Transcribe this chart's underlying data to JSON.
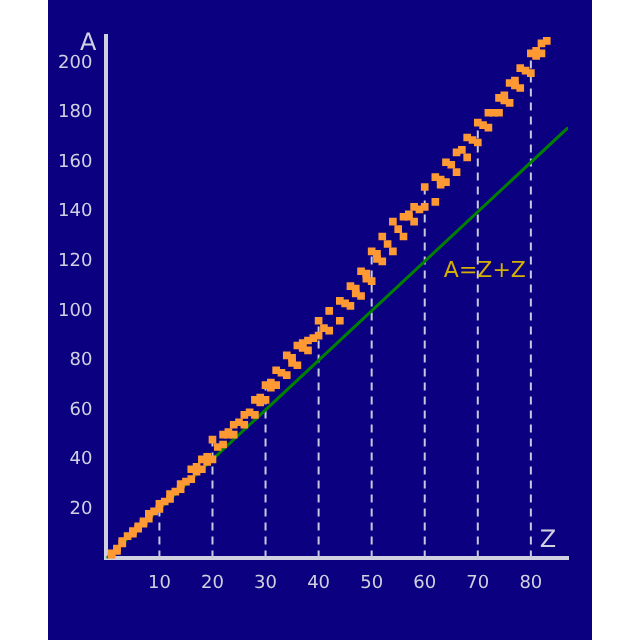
{
  "chart_data": {
    "type": "scatter",
    "xlabel": "Z",
    "ylabel": "A",
    "xlim": [
      0,
      87
    ],
    "ylim": [
      0,
      211
    ],
    "xticks": [
      10,
      20,
      30,
      40,
      50,
      60,
      70,
      80
    ],
    "yticks": [
      20,
      40,
      60,
      80,
      100,
      120,
      140,
      160,
      180,
      200
    ],
    "grid": false,
    "legend": false,
    "marker": "square",
    "series": [
      {
        "color": "#ff9933",
        "x": [
          1,
          1,
          2,
          2,
          3,
          3,
          4,
          5,
          5,
          6,
          6,
          7,
          7,
          8,
          8,
          9,
          10,
          10,
          11,
          12,
          12,
          13,
          14,
          14,
          15,
          16,
          16,
          17,
          17,
          18,
          18,
          19,
          19,
          20,
          20,
          21,
          22,
          22,
          23,
          23,
          24,
          24,
          25,
          26,
          26,
          27,
          28,
          28,
          29,
          29,
          30,
          30,
          31,
          31,
          32,
          32,
          33,
          34,
          34,
          35,
          35,
          36,
          36,
          37,
          37,
          38,
          38,
          39,
          40,
          40,
          41,
          42,
          42,
          44,
          44,
          45,
          46,
          46,
          47,
          47,
          48,
          48,
          49,
          49,
          50,
          50,
          51,
          51,
          52,
          52,
          53,
          54,
          54,
          55,
          56,
          56,
          57,
          57,
          58,
          58,
          59,
          60,
          60,
          62,
          62,
          63,
          63,
          64,
          64,
          65,
          66,
          66,
          67,
          68,
          68,
          69,
          70,
          70,
          71,
          72,
          72,
          73,
          74,
          74,
          75,
          75,
          76,
          76,
          77,
          77,
          78,
          78,
          79,
          80,
          80,
          81,
          81,
          82,
          82,
          83
        ],
        "values": [
          1,
          2,
          3,
          4,
          6,
          7,
          9,
          10,
          11,
          12,
          13,
          14,
          15,
          16,
          18,
          19,
          20,
          22,
          23,
          24,
          26,
          27,
          28,
          30,
          31,
          32,
          36,
          35,
          37,
          36,
          40,
          39,
          41,
          40,
          48,
          45,
          46,
          50,
          50,
          51,
          50,
          54,
          55,
          54,
          58,
          59,
          58,
          64,
          63,
          65,
          64,
          70,
          69,
          71,
          70,
          76,
          75,
          74,
          82,
          79,
          81,
          78,
          86,
          85,
          87,
          84,
          88,
          89,
          90,
          96,
          93,
          92,
          100,
          96,
          104,
          103,
          102,
          110,
          107,
          109,
          106,
          116,
          113,
          115,
          112,
          124,
          121,
          123,
          120,
          130,
          127,
          124,
          136,
          133,
          130,
          138,
          138,
          139,
          136,
          142,
          141,
          142,
          150,
          144,
          154,
          151,
          153,
          152,
          160,
          159,
          156,
          164,
          165,
          162,
          170,
          169,
          168,
          176,
          175,
          174,
          180,
          180,
          180,
          186,
          185,
          187,
          184,
          192,
          191,
          193,
          190,
          198,
          197,
          196,
          204,
          203,
          205,
          204,
          208,
          209
        ]
      },
      {
        "type": "line",
        "color": "#008000",
        "x": [
          0,
          87
        ],
        "values": [
          0,
          174
        ],
        "marker": "none"
      }
    ],
    "ref_lines": [
      {
        "axis": "x",
        "value": 10,
        "color": "#c8c8e0",
        "line_style": "dashed"
      },
      {
        "axis": "x",
        "value": 20,
        "color": "#c8c8e0",
        "line_style": "dashed"
      },
      {
        "axis": "x",
        "value": 30,
        "color": "#c8c8e0",
        "line_style": "dashed"
      },
      {
        "axis": "x",
        "value": 40,
        "color": "#c8c8e0",
        "line_style": "dashed"
      },
      {
        "axis": "x",
        "value": 50,
        "color": "#c8c8e0",
        "line_style": "dashed"
      },
      {
        "axis": "x",
        "value": 60,
        "color": "#c8c8e0",
        "line_style": "dashed"
      },
      {
        "axis": "x",
        "value": 70,
        "color": "#c8c8e0",
        "line_style": "dashed"
      },
      {
        "axis": "x",
        "value": 80,
        "color": "#c8c8e0",
        "line_style": "dashed"
      }
    ],
    "annotations": [
      "A=Z+Z"
    ]
  }
}
